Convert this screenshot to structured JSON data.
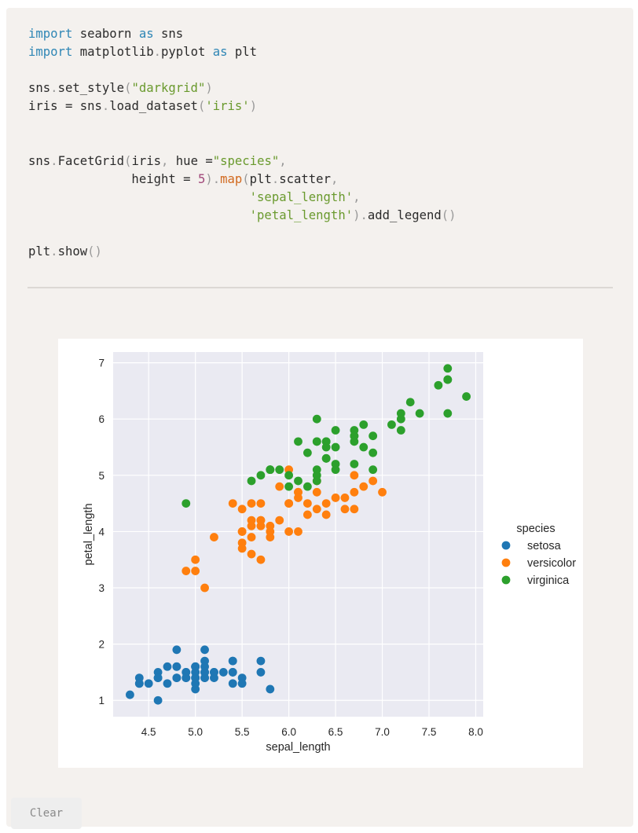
{
  "code": {
    "lines": [
      [
        [
          "kw",
          "import"
        ],
        [
          "t",
          " seaborn "
        ],
        [
          "kw",
          "as"
        ],
        [
          "t",
          " sns"
        ]
      ],
      [
        [
          "kw",
          "import"
        ],
        [
          "t",
          " matplotlib"
        ],
        [
          "pun",
          "."
        ],
        [
          "t",
          "pyplot "
        ],
        [
          "kw",
          "as"
        ],
        [
          "t",
          " plt"
        ]
      ],
      [],
      [
        [
          "t",
          "sns"
        ],
        [
          "pun",
          "."
        ],
        [
          "t",
          "set_style"
        ],
        [
          "pun",
          "("
        ],
        [
          "str",
          "\"darkgrid\""
        ],
        [
          "pun",
          ")"
        ]
      ],
      [
        [
          "t",
          "iris = sns"
        ],
        [
          "pun",
          "."
        ],
        [
          "t",
          "load_dataset"
        ],
        [
          "pun",
          "("
        ],
        [
          "str",
          "'iris'"
        ],
        [
          "pun",
          ")"
        ]
      ],
      [],
      [],
      [
        [
          "t",
          "sns"
        ],
        [
          "pun",
          "."
        ],
        [
          "t",
          "FacetGrid"
        ],
        [
          "pun",
          "("
        ],
        [
          "t",
          "iris"
        ],
        [
          "pun",
          ","
        ],
        [
          "t",
          " hue ="
        ],
        [
          "str",
          "\"species\""
        ],
        [
          "pun",
          ","
        ]
      ],
      [
        [
          "t",
          "              height = "
        ],
        [
          "num",
          "5"
        ],
        [
          "pun",
          ")."
        ],
        [
          "fn",
          "map"
        ],
        [
          "pun",
          "("
        ],
        [
          "t",
          "plt"
        ],
        [
          "pun",
          "."
        ],
        [
          "t",
          "scatter"
        ],
        [
          "pun",
          ","
        ]
      ],
      [
        [
          "t",
          "                              "
        ],
        [
          "str",
          "'sepal_length'"
        ],
        [
          "pun",
          ","
        ]
      ],
      [
        [
          "t",
          "                              "
        ],
        [
          "str",
          "'petal_length'"
        ],
        [
          "pun",
          ")."
        ],
        [
          "t",
          "add_legend"
        ],
        [
          "pun",
          "()"
        ]
      ],
      [],
      [
        [
          "t",
          "plt"
        ],
        [
          "pun",
          "."
        ],
        [
          "t",
          "show"
        ],
        [
          "pun",
          "()"
        ]
      ]
    ]
  },
  "clear_label": "Clear",
  "chart_data": {
    "type": "scatter",
    "xlabel": "sepal_length",
    "ylabel": "petal_length",
    "xlim": [
      4.12,
      8.08
    ],
    "ylim": [
      0.71,
      7.19
    ],
    "xticks": [
      "4.5",
      "5.0",
      "5.5",
      "6.0",
      "6.5",
      "7.0",
      "7.5",
      "8.0"
    ],
    "yticks": [
      "1",
      "2",
      "3",
      "4",
      "5",
      "6",
      "7"
    ],
    "grid": true,
    "style": "darkgrid",
    "legend": {
      "title": "species",
      "placement": "right"
    },
    "series": [
      {
        "name": "setosa",
        "color": "#1f77b4",
        "points": [
          [
            5.1,
            1.4
          ],
          [
            4.9,
            1.4
          ],
          [
            4.7,
            1.3
          ],
          [
            4.6,
            1.5
          ],
          [
            5.0,
            1.4
          ],
          [
            5.4,
            1.7
          ],
          [
            4.6,
            1.4
          ],
          [
            5.0,
            1.5
          ],
          [
            4.4,
            1.4
          ],
          [
            4.9,
            1.5
          ],
          [
            5.4,
            1.5
          ],
          [
            4.8,
            1.6
          ],
          [
            4.8,
            1.4
          ],
          [
            4.3,
            1.1
          ],
          [
            5.8,
            1.2
          ],
          [
            5.7,
            1.5
          ],
          [
            5.4,
            1.3
          ],
          [
            5.1,
            1.4
          ],
          [
            5.7,
            1.7
          ],
          [
            5.1,
            1.5
          ],
          [
            5.4,
            1.7
          ],
          [
            5.1,
            1.5
          ],
          [
            4.6,
            1.0
          ],
          [
            5.1,
            1.7
          ],
          [
            4.8,
            1.9
          ],
          [
            5.0,
            1.6
          ],
          [
            5.0,
            1.6
          ],
          [
            5.2,
            1.5
          ],
          [
            5.2,
            1.4
          ],
          [
            4.7,
            1.6
          ],
          [
            4.8,
            1.6
          ],
          [
            5.4,
            1.5
          ],
          [
            5.2,
            1.5
          ],
          [
            5.5,
            1.4
          ],
          [
            4.9,
            1.5
          ],
          [
            5.0,
            1.2
          ],
          [
            5.5,
            1.3
          ],
          [
            4.9,
            1.4
          ],
          [
            4.4,
            1.3
          ],
          [
            5.1,
            1.5
          ],
          [
            5.0,
            1.3
          ],
          [
            4.5,
            1.3
          ],
          [
            4.4,
            1.3
          ],
          [
            5.0,
            1.6
          ],
          [
            5.1,
            1.9
          ],
          [
            4.8,
            1.4
          ],
          [
            5.1,
            1.6
          ],
          [
            4.6,
            1.4
          ],
          [
            5.3,
            1.5
          ],
          [
            5.0,
            1.4
          ]
        ]
      },
      {
        "name": "versicolor",
        "color": "#ff7f0e",
        "points": [
          [
            7.0,
            4.7
          ],
          [
            6.4,
            4.5
          ],
          [
            6.9,
            4.9
          ],
          [
            5.5,
            4.0
          ],
          [
            6.5,
            4.6
          ],
          [
            5.7,
            4.5
          ],
          [
            6.3,
            4.7
          ],
          [
            4.9,
            3.3
          ],
          [
            6.6,
            4.6
          ],
          [
            5.2,
            3.9
          ],
          [
            5.0,
            3.5
          ],
          [
            5.9,
            4.2
          ],
          [
            6.0,
            4.0
          ],
          [
            6.1,
            4.7
          ],
          [
            5.6,
            3.6
          ],
          [
            6.7,
            4.4
          ],
          [
            5.6,
            4.5
          ],
          [
            5.8,
            4.1
          ],
          [
            6.2,
            4.5
          ],
          [
            5.6,
            3.9
          ],
          [
            5.9,
            4.8
          ],
          [
            6.1,
            4.0
          ],
          [
            6.3,
            4.9
          ],
          [
            6.1,
            4.7
          ],
          [
            6.4,
            4.3
          ],
          [
            6.6,
            4.4
          ],
          [
            6.8,
            4.8
          ],
          [
            6.7,
            5.0
          ],
          [
            6.0,
            4.5
          ],
          [
            5.7,
            3.5
          ],
          [
            5.5,
            3.8
          ],
          [
            5.5,
            3.7
          ],
          [
            5.8,
            3.9
          ],
          [
            6.0,
            5.1
          ],
          [
            5.4,
            4.5
          ],
          [
            6.0,
            4.5
          ],
          [
            6.7,
            4.7
          ],
          [
            6.3,
            4.4
          ],
          [
            5.6,
            4.1
          ],
          [
            5.5,
            4.0
          ],
          [
            5.5,
            4.4
          ],
          [
            6.1,
            4.6
          ],
          [
            5.8,
            4.0
          ],
          [
            5.0,
            3.3
          ],
          [
            5.6,
            4.2
          ],
          [
            5.7,
            4.2
          ],
          [
            5.7,
            4.2
          ],
          [
            6.2,
            4.3
          ],
          [
            5.1,
            3.0
          ],
          [
            5.7,
            4.1
          ]
        ]
      },
      {
        "name": "virginica",
        "color": "#2ca02c",
        "points": [
          [
            6.3,
            6.0
          ],
          [
            5.8,
            5.1
          ],
          [
            7.1,
            5.9
          ],
          [
            6.3,
            5.6
          ],
          [
            6.5,
            5.8
          ],
          [
            7.6,
            6.6
          ],
          [
            4.9,
            4.5
          ],
          [
            7.3,
            6.3
          ],
          [
            6.7,
            5.8
          ],
          [
            7.2,
            6.1
          ],
          [
            6.5,
            5.1
          ],
          [
            6.4,
            5.3
          ],
          [
            6.8,
            5.5
          ],
          [
            5.7,
            5.0
          ],
          [
            5.8,
            5.1
          ],
          [
            6.4,
            5.3
          ],
          [
            6.5,
            5.5
          ],
          [
            7.7,
            6.7
          ],
          [
            7.7,
            6.9
          ],
          [
            6.0,
            5.0
          ],
          [
            6.9,
            5.7
          ],
          [
            5.6,
            4.9
          ],
          [
            7.7,
            6.7
          ],
          [
            6.3,
            4.9
          ],
          [
            6.7,
            5.7
          ],
          [
            7.2,
            6.0
          ],
          [
            6.2,
            4.8
          ],
          [
            6.1,
            4.9
          ],
          [
            6.4,
            5.6
          ],
          [
            7.2,
            5.8
          ],
          [
            7.4,
            6.1
          ],
          [
            7.9,
            6.4
          ],
          [
            6.4,
            5.6
          ],
          [
            6.3,
            5.1
          ],
          [
            6.1,
            5.6
          ],
          [
            7.7,
            6.1
          ],
          [
            6.3,
            5.6
          ],
          [
            6.4,
            5.5
          ],
          [
            6.0,
            4.8
          ],
          [
            6.9,
            5.4
          ],
          [
            6.7,
            5.6
          ],
          [
            6.9,
            5.1
          ],
          [
            5.8,
            5.1
          ],
          [
            6.8,
            5.9
          ],
          [
            6.7,
            5.7
          ],
          [
            6.7,
            5.2
          ],
          [
            6.3,
            5.0
          ],
          [
            6.5,
            5.2
          ],
          [
            6.2,
            5.4
          ],
          [
            5.9,
            5.1
          ]
        ]
      }
    ]
  }
}
